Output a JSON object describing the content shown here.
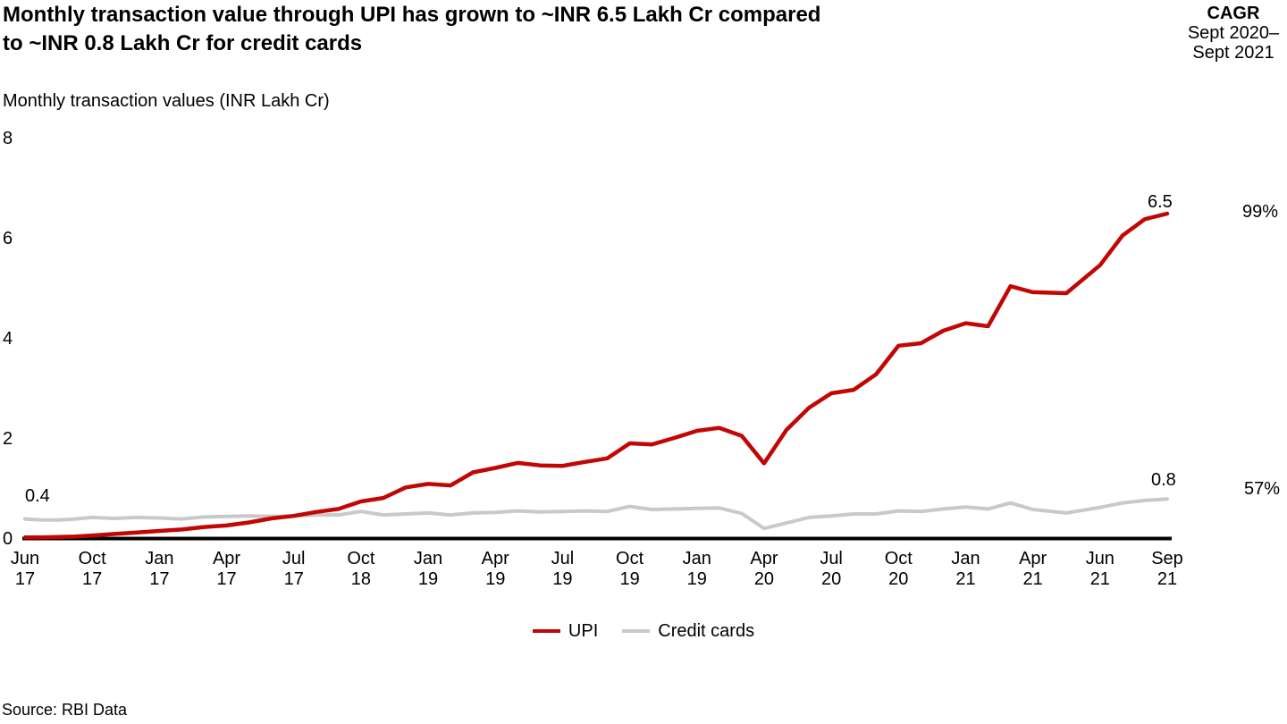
{
  "header": {
    "title_lines": [
      "Monthly transaction value through UPI has grown to ~INR 6.5 Lakh Cr compared",
      "to ~INR 0.8 Lakh Cr for credit cards"
    ],
    "cagr_label": "CAGR",
    "cagr_period_lines": [
      "Sept 2020–",
      "Sept 2021"
    ]
  },
  "footer": {
    "source": "Source: RBI Data"
  },
  "chart_data": {
    "type": "line",
    "title": "Monthly transaction value through UPI has grown to ~INR 6.5 Lakh Cr compared to ~INR 0.8 Lakh Cr for credit cards",
    "axis_title": "Monthly transaction values (INR Lakh Cr)",
    "xlabel": "",
    "ylabel": "Monthly transaction values (INR Lakh Cr)",
    "ylim": [
      0,
      8
    ],
    "y_ticks": [
      0,
      2,
      4,
      6,
      8
    ],
    "grid": "off",
    "legend_position": "bottom-center",
    "x_tick_labels": [
      [
        "Jun",
        "17"
      ],
      [
        "Oct",
        "17"
      ],
      [
        "Jan",
        "17"
      ],
      [
        "Apr",
        "17"
      ],
      [
        "Jul",
        "17"
      ],
      [
        "Oct",
        "18"
      ],
      [
        "Jan",
        "19"
      ],
      [
        "Apr",
        "19"
      ],
      [
        "Jul",
        "19"
      ],
      [
        "Oct",
        "19"
      ],
      [
        "Jan",
        "19"
      ],
      [
        "Apr",
        "20"
      ],
      [
        "Jul",
        "20"
      ],
      [
        "Oct",
        "20"
      ],
      [
        "Jan",
        "21"
      ],
      [
        "Apr",
        "21"
      ],
      [
        "Jun",
        "21"
      ],
      [
        "Sep",
        "21"
      ]
    ],
    "tick_month_index": [
      0,
      4,
      7,
      10,
      13,
      16,
      19,
      22,
      25,
      28,
      31,
      34,
      37,
      40,
      43,
      46,
      48,
      51
    ],
    "x_range_months": "Jun 2017 – Sep 2021",
    "series": [
      {
        "name": "UPI",
        "color": "#c20606",
        "end_label": "6.5",
        "cagr": "99%",
        "values": [
          0.03,
          0.03,
          0.04,
          0.05,
          0.07,
          0.1,
          0.13,
          0.16,
          0.19,
          0.24,
          0.27,
          0.33,
          0.41,
          0.46,
          0.54,
          0.6,
          0.75,
          0.82,
          1.03,
          1.1,
          1.07,
          1.33,
          1.42,
          1.52,
          1.47,
          1.46,
          1.54,
          1.61,
          1.91,
          1.89,
          2.02,
          2.16,
          2.22,
          2.06,
          1.51,
          2.18,
          2.62,
          2.91,
          2.98,
          3.29,
          3.86,
          3.91,
          4.16,
          4.31,
          4.25,
          5.05,
          4.93,
          4.91,
          5.47,
          6.06,
          6.39,
          6.5
        ]
      },
      {
        "name": "Credit cards",
        "color": "#c9c9c9",
        "start_label": "0.4",
        "end_label": "0.8",
        "cagr": "57%",
        "values": [
          0.4,
          0.38,
          0.38,
          0.4,
          0.43,
          0.41,
          0.43,
          0.42,
          0.4,
          0.44,
          0.45,
          0.46,
          0.45,
          0.46,
          0.48,
          0.48,
          0.55,
          0.48,
          0.5,
          0.52,
          0.48,
          0.52,
          0.53,
          0.56,
          0.54,
          0.55,
          0.56,
          0.55,
          0.65,
          0.59,
          0.6,
          0.61,
          0.62,
          0.51,
          0.21,
          0.32,
          0.43,
          0.46,
          0.5,
          0.5,
          0.56,
          0.55,
          0.6,
          0.64,
          0.6,
          0.72,
          0.59,
          0.52,
          0.63,
          0.72,
          0.77,
          0.8
        ]
      }
    ]
  }
}
